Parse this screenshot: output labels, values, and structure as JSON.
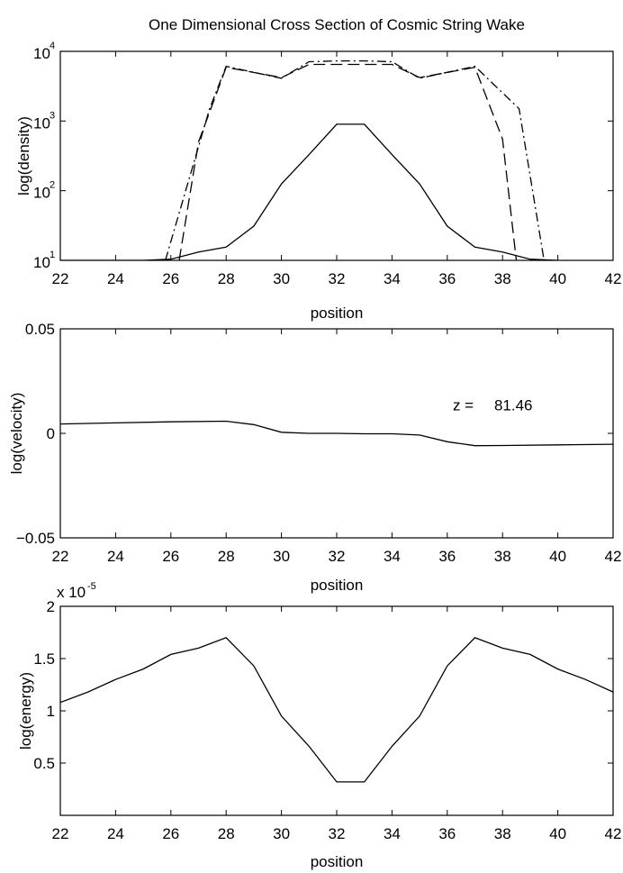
{
  "figure": {
    "title": "One Dimensional Cross Section of Cosmic String Wake"
  },
  "chart_data": [
    {
      "type": "line",
      "xlabel": "position",
      "ylabel": "log(density)",
      "yscale": "log",
      "xlim": [
        22,
        42
      ],
      "ylim": [
        10,
        10000
      ],
      "x_ticks": [
        22,
        24,
        26,
        28,
        30,
        32,
        34,
        36,
        38,
        40,
        42
      ],
      "y_ticks": [
        {
          "value": 10,
          "base": "10",
          "exp": "1"
        },
        {
          "value": 100,
          "base": "10",
          "exp": "2"
        },
        {
          "value": 1000,
          "base": "10",
          "exp": "3"
        },
        {
          "value": 10000,
          "base": "10",
          "exp": "4"
        }
      ],
      "series": [
        {
          "style": "solid",
          "x": [
            22,
            25,
            26,
            27,
            28,
            29,
            30,
            31,
            32,
            33,
            34,
            35,
            36,
            37,
            38,
            39,
            40
          ],
          "y": [
            10,
            10,
            10.4,
            13.2,
            15.5,
            31,
            125,
            330,
            900,
            900,
            330,
            125,
            31,
            15.5,
            13.2,
            10.4,
            10
          ]
        },
        {
          "style": "dashed",
          "x": [
            26.3,
            27,
            28,
            30,
            31,
            32,
            33,
            34,
            35,
            37,
            38,
            38.5
          ],
          "y": [
            10,
            500,
            5900,
            4200,
            6500,
            6500,
            6500,
            6500,
            4200,
            5900,
            550,
            10
          ]
        },
        {
          "style": "dashdot",
          "x": [
            25.8,
            26.5,
            27.4,
            28,
            30,
            31,
            32,
            33,
            34,
            35,
            37,
            38.6,
            39.5
          ],
          "y": [
            10,
            90,
            1500,
            6100,
            4100,
            7100,
            7300,
            7300,
            7100,
            4100,
            6100,
            1500,
            10
          ]
        }
      ]
    },
    {
      "type": "line",
      "xlabel": "position",
      "ylabel": "log(velocity)",
      "xlim": [
        22,
        42
      ],
      "ylim": [
        -0.05,
        0.05
      ],
      "x_ticks": [
        22,
        24,
        26,
        28,
        30,
        32,
        34,
        36,
        38,
        40,
        42
      ],
      "y_ticks": [
        {
          "value": 0.05,
          "label": "0.05"
        },
        {
          "value": 0,
          "label": "0"
        },
        {
          "value": -0.05,
          "label": "−0.05"
        }
      ],
      "annotation": {
        "label": "z =",
        "value": "81.46",
        "x": 36.2,
        "y": 0.011
      },
      "series": [
        {
          "style": "solid",
          "x": [
            22,
            24,
            26,
            28,
            29,
            30,
            31,
            32,
            33,
            34,
            35,
            36,
            37,
            38,
            40,
            42
          ],
          "y": [
            0.0045,
            0.005,
            0.0055,
            0.0058,
            0.0042,
            0.0005,
            0,
            0,
            -0.0002,
            -0.0002,
            -0.0008,
            -0.004,
            -0.0059,
            -0.0058,
            -0.0055,
            -0.0052
          ]
        }
      ]
    },
    {
      "type": "line",
      "xlabel": "position",
      "ylabel": "log(energy)",
      "xlim": [
        22,
        42
      ],
      "ylim": [
        0,
        2
      ],
      "y_multiplier": {
        "base": "x 10",
        "exp": "-5"
      },
      "x_ticks": [
        22,
        24,
        26,
        28,
        30,
        32,
        34,
        36,
        38,
        40,
        42
      ],
      "y_ticks": [
        {
          "value": 0.5,
          "label": "0.5"
        },
        {
          "value": 1,
          "label": "1"
        },
        {
          "value": 1.5,
          "label": "1.5"
        },
        {
          "value": 2,
          "label": "2"
        }
      ],
      "series": [
        {
          "style": "solid",
          "x": [
            22,
            23,
            24,
            25,
            26,
            27,
            28,
            29,
            30,
            31,
            32,
            33,
            34,
            35,
            36,
            37,
            38,
            39,
            40,
            41,
            42
          ],
          "y": [
            1.08,
            1.18,
            1.3,
            1.4,
            1.54,
            1.6,
            1.7,
            1.43,
            0.95,
            0.66,
            0.32,
            0.32,
            0.66,
            0.95,
            1.43,
            1.7,
            1.6,
            1.54,
            1.4,
            1.3,
            1.18
          ]
        }
      ]
    }
  ]
}
